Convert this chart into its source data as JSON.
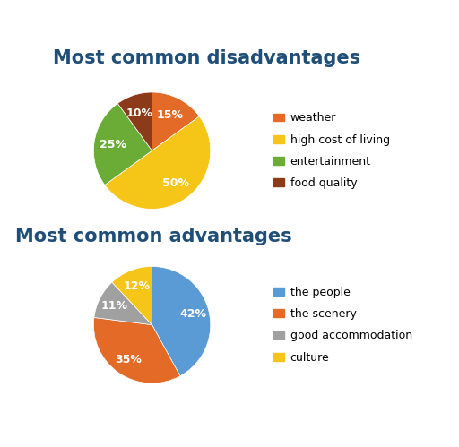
{
  "disadvantages": {
    "title": "Most common disadvantages",
    "labels": [
      "weather",
      "high cost of living",
      "entertainment",
      "food quality"
    ],
    "values": [
      15,
      50,
      25,
      10
    ],
    "colors": [
      "#E36B27",
      "#F5C518",
      "#6AAC35",
      "#8B3A1A"
    ],
    "legend_colors": [
      "#E36B27",
      "#F5C518",
      "#6AAC35",
      "#8B3A1A"
    ]
  },
  "advantages": {
    "title": "Most common advantages",
    "labels": [
      "the people",
      "the scenery",
      "good accommodation",
      "culture"
    ],
    "values": [
      42,
      35,
      11,
      12
    ],
    "colors": [
      "#5B9BD5",
      "#E36B27",
      "#A0A0A0",
      "#F5C518"
    ],
    "legend_colors": [
      "#5B9BD5",
      "#E36B27",
      "#A0A0A0",
      "#F5C518"
    ]
  },
  "background_color": "#FFFFFF",
  "title_fontsize": 15,
  "title_color": "#1F4E79",
  "label_fontsize": 9,
  "legend_fontsize": 9
}
